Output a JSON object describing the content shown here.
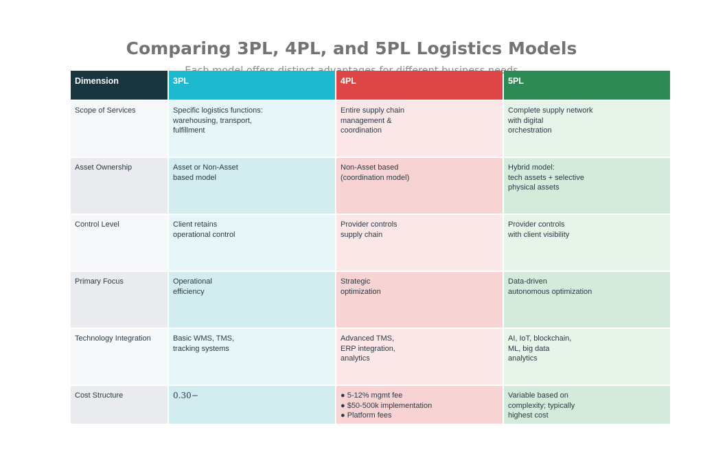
{
  "title": "Comparing 3PL, 4PL, and 5PL Logistics Models",
  "subtitle": "Each model offers distinct advantages for different business needs",
  "colors": {
    "dimension_header": "#19353d",
    "3pl_header": "#1eb8cf",
    "4pl_header": "#dc4646",
    "5pl_header": "#2d8a55",
    "dimension_row_light": "#f6f8fa",
    "dimension_row_dark": "#e9ebee",
    "3pl_light": "#e7f6f8",
    "3pl_dark": "#d2ecf0",
    "4pl_light": "#fce7e8",
    "4pl_dark": "#f8d3d4",
    "5pl_light": "#e6f4ea",
    "5pl_dark": "#d4ebdc"
  },
  "chart_data": {
    "type": "table",
    "columns": [
      "Dimension",
      "3PL",
      "4PL",
      "5PL"
    ],
    "rows": [
      [
        "Scope of Services",
        "Specific logistics functions:\nwarehousing, transport,\nfulfillment",
        "Entire supply chain\nmanagement &\ncoordination",
        "Complete supply network\nwith digital\norchestration"
      ],
      [
        "Asset Ownership",
        "Asset or Non-Asset\nbased model",
        "Non-Asset based\n(coordination model)",
        "Hybrid model:\ntech assets + selective\nphysical assets"
      ],
      [
        "Control Level",
        "Client retains\noperational control",
        "Provider controls\nsupply chain",
        "Provider controls\nwith client visibility"
      ],
      [
        "Primary Focus",
        "Operational\nefficiency",
        "Strategic\noptimization",
        "Data-driven\nautonomous optimization"
      ],
      [
        "Technology Integration",
        "Basic WMS, TMS,\ntracking systems",
        "Advanced TMS,\nERP integration,\nanalytics",
        "AI, IoT, blockchain,\nML, big data\nanalytics"
      ],
      [
        "Cost Structure",
        "0.30−",
        "● 5-12% mgmt fee\n● $50-500k implementation\n● Platform fees",
        "Variable based on\ncomplexity; typically\nhighest cost"
      ]
    ]
  }
}
